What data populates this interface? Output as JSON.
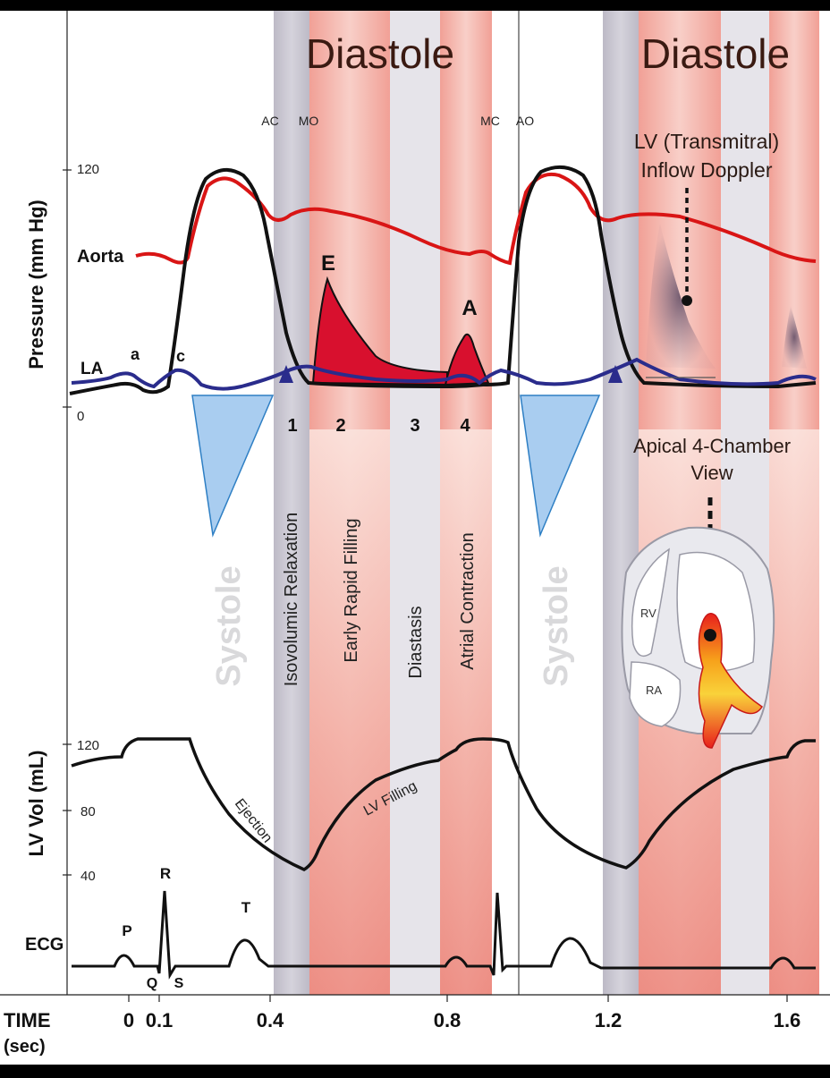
{
  "headers": {
    "diastole_1": "Diastole",
    "diastole_2": "Diastole"
  },
  "valve_events": {
    "ac": "AC",
    "mo": "MO",
    "mc": "MC",
    "ao": "AO"
  },
  "axes": {
    "pressure_label": "Pressure (mm Hg)",
    "pressure_120": "120",
    "pressure_0": "0",
    "volume_label": "LV Vol (mL)",
    "vol_120": "120",
    "vol_80": "80",
    "vol_40": "40",
    "ecg_label": "ECG",
    "time_label": "TIME",
    "time_unit": "(sec)",
    "time_ticks": [
      "0",
      "0.1",
      "0.4",
      "0.8",
      "1.2",
      "1.6"
    ]
  },
  "curves": {
    "aorta": "Aorta",
    "la": "LA",
    "a_wave": "a",
    "c_wave": "c",
    "e_wave": "E",
    "a_peak": "A"
  },
  "phases": {
    "n1": "1",
    "n2": "2",
    "n3": "3",
    "n4": "4",
    "isovolumic": "Isovolumic Relaxation",
    "early_filling": "Early Rapid Filling",
    "diastasis": "Diastasis",
    "atrial": "Atrial Contraction",
    "systole_1": "Systole",
    "systole_2": "Systole"
  },
  "annotations": {
    "doppler_line1": "LV (Transmitral)",
    "doppler_line2": "Inflow Doppler",
    "apical_line1": "Apical 4-Chamber",
    "apical_line2": "View",
    "rv": "RV",
    "ra": "RA",
    "ejection": "Ejection",
    "lv_filling": "LV Filling"
  },
  "ecg_waves": {
    "p": "P",
    "q": "Q",
    "r": "R",
    "s": "S",
    "t": "T"
  },
  "colors": {
    "aorta": "#d91515",
    "lv": "#111111",
    "la": "#2a2c8c",
    "filling": "#d8102e",
    "systole_fill": "#9cc3ea",
    "band_gray": "#c7c4ce",
    "band_red": "#ef9a90"
  }
}
